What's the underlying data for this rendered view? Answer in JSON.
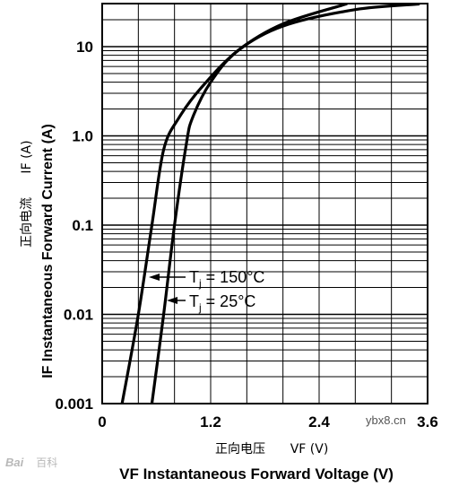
{
  "chart_data": {
    "type": "line",
    "xlabel": "VF Instantaneous Forward Voltage (V)",
    "xlabel_cn": "正向电压",
    "xlabel_cn_symbol": "VF (V)",
    "ylabel": "IF Instantaneous Forward Current (A)",
    "ylabel_cn": "正向电流",
    "ylabel_cn_symbol": "IF (A)",
    "xlim": [
      0,
      3.6
    ],
    "ylim": [
      0.001,
      30
    ],
    "yscale": "log",
    "grid": true,
    "xticks": [
      "0",
      "1.2",
      "2.4",
      "3.6"
    ],
    "yticks": [
      "0.001",
      "0.01",
      "0.1",
      "1.0",
      "10"
    ],
    "series": [
      {
        "name": "Tj = 150°C",
        "x": [
          0.22,
          0.4,
          0.55,
          0.68,
          0.85,
          1.1,
          1.5,
          2.0,
          2.7
        ],
        "y": [
          0.001,
          0.01,
          0.1,
          0.7,
          1.6,
          3.5,
          9.0,
          18,
          30
        ]
      },
      {
        "name": "Tj = 25°C",
        "x": [
          0.55,
          0.68,
          0.8,
          0.93,
          1.0,
          1.2,
          1.5,
          2.0,
          2.8,
          3.5
        ],
        "y": [
          0.001,
          0.01,
          0.1,
          0.8,
          1.6,
          4.0,
          9.0,
          17,
          26,
          30
        ]
      }
    ],
    "annotations": [
      {
        "text_T": "T",
        "text_sub": "j",
        "text_rest": " = 150°C"
      },
      {
        "text_T": "T",
        "text_sub": "j",
        "text_rest": " = 25°C"
      }
    ]
  },
  "watermark": {
    "left_text": "Bai",
    "left_cn": "百科",
    "right_text": "ybx8.cn"
  }
}
